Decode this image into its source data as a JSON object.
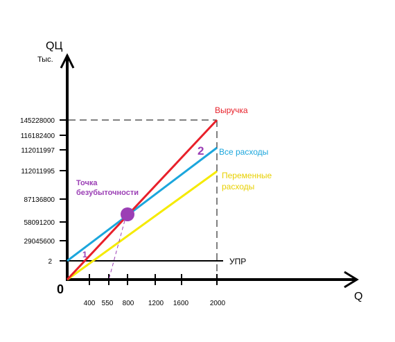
{
  "chart_data": {
    "type": "line",
    "y_axis_label": "QЦ",
    "y_unit": "Тыс.",
    "x_axis_label": "Q",
    "origin_label": "0",
    "x_ticks": [
      "400",
      "550",
      "800",
      "1200",
      "1600",
      "2000"
    ],
    "y_ticks": [
      "145228000",
      "116182400",
      "112011997",
      "112011995",
      "87136800",
      "58091200",
      "29045600",
      "2"
    ],
    "series": [
      {
        "name": "Выручка",
        "color": "#e8202a",
        "points": [
          [
            0,
            0
          ],
          [
            2000,
            145228000
          ]
        ]
      },
      {
        "name": "Все расходы",
        "color": "#1ba6dc",
        "points": [
          [
            0,
            2
          ],
          [
            2000,
            112011997
          ]
        ]
      },
      {
        "name": "Переменные расходы",
        "color": "#f5ea00",
        "points": [
          [
            0,
            0
          ],
          [
            2000,
            112011995
          ]
        ]
      },
      {
        "name": "УПР",
        "color": "#000000",
        "points": [
          [
            0,
            2
          ],
          [
            2000,
            2
          ]
        ]
      }
    ],
    "break_even": {
      "label": "Точка безубыточности",
      "x": 800,
      "y": 58091200,
      "color": "#9b3fb5"
    },
    "annotations": [
      {
        "text": "1",
        "color": "#9b3fb5"
      },
      {
        "text": "2",
        "color": "#9b3fb5"
      }
    ],
    "label_lines": {
      "revenue": "Выручка",
      "total": "Все расходы",
      "variable_1": "Переменные",
      "variable_2": "расходы",
      "fixed": "УПР",
      "bep_1": "Точка",
      "bep_2": "безубыточности"
    }
  }
}
